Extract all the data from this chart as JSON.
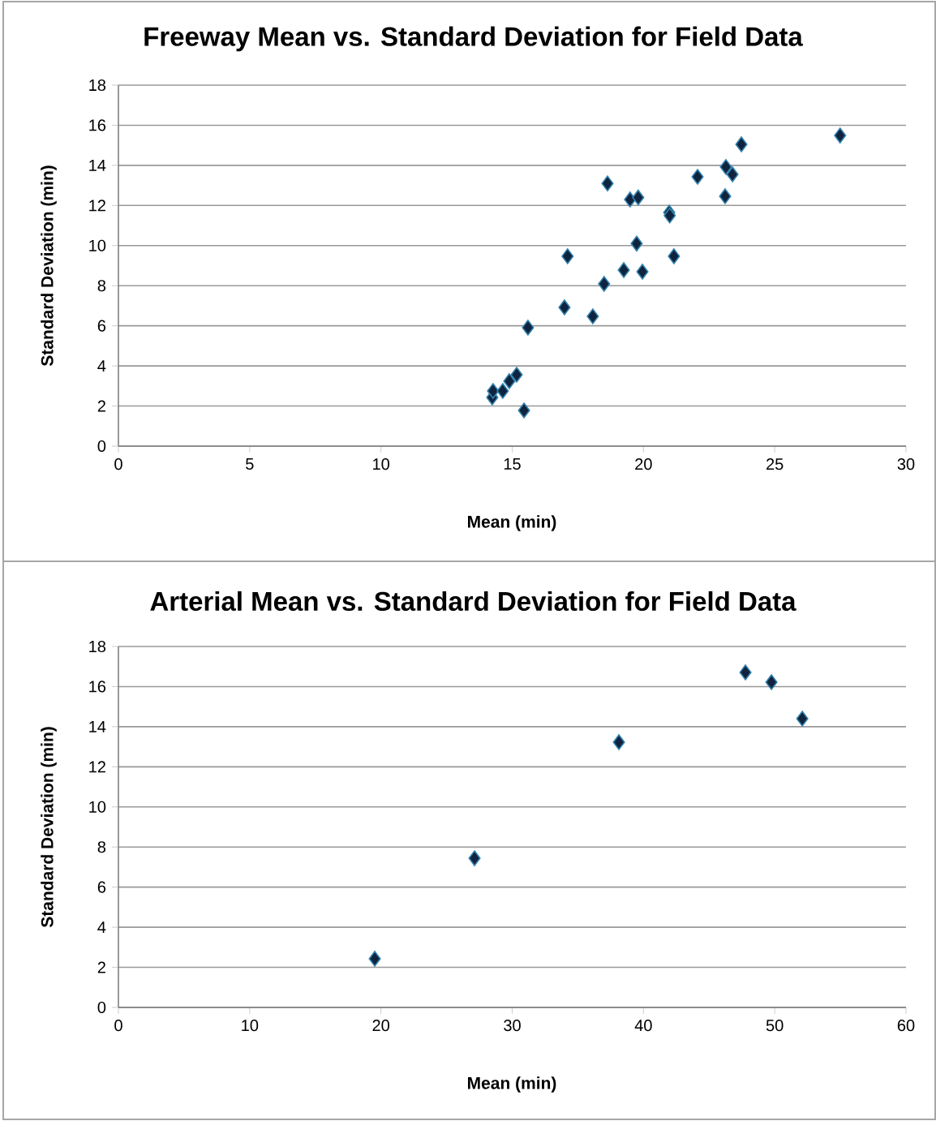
{
  "chart_data": [
    {
      "type": "scatter",
      "title": "Freeway Mean vs. Standard Deviation for Field Data",
      "xlabel": "Mean (min)",
      "ylabel": "Standard Deviation (min)",
      "x": [
        14.24,
        14.27,
        14.64,
        14.89,
        15.17,
        15.45,
        15.6,
        16.99,
        17.11,
        18.07,
        18.5,
        18.63,
        19.25,
        19.49,
        19.8,
        19.74,
        19.96,
        20.98,
        21.0,
        21.16,
        22.06,
        23.11,
        23.14,
        23.39,
        23.73,
        27.49
      ],
      "values": [
        2.43,
        2.75,
        2.75,
        3.24,
        3.56,
        1.78,
        5.91,
        6.92,
        9.47,
        6.47,
        8.09,
        13.1,
        8.78,
        12.3,
        12.4,
        10.1,
        8.7,
        11.65,
        11.5,
        9.47,
        13.43,
        12.46,
        13.92,
        13.55,
        15.05,
        15.49
      ],
      "color": "#10243f",
      "marker": "diamond",
      "grid": "y",
      "xlim": [
        0,
        30
      ],
      "ylim": [
        0,
        18
      ],
      "xticks": [
        0,
        5,
        10,
        15,
        20,
        25,
        30
      ],
      "yticks": [
        0,
        2,
        4,
        6,
        8,
        10,
        12,
        14,
        16,
        18
      ]
    },
    {
      "type": "scatter",
      "title": "Arterial Mean vs. Standard Deviation for Field Data",
      "xlabel": "Mean (min)",
      "ylabel": "Standard Deviation (min)",
      "x": [
        19.53,
        27.13,
        38.13,
        47.77,
        49.75,
        52.1
      ],
      "values": [
        2.43,
        7.44,
        13.23,
        16.71,
        16.22,
        14.4
      ],
      "color": "#10243f",
      "marker": "diamond",
      "grid": "y",
      "xlim": [
        0,
        60
      ],
      "ylim": [
        0,
        18
      ],
      "xticks": [
        0,
        10,
        20,
        30,
        40,
        50,
        60
      ],
      "yticks": [
        0,
        2,
        4,
        6,
        8,
        10,
        12,
        14,
        16,
        18
      ]
    }
  ]
}
